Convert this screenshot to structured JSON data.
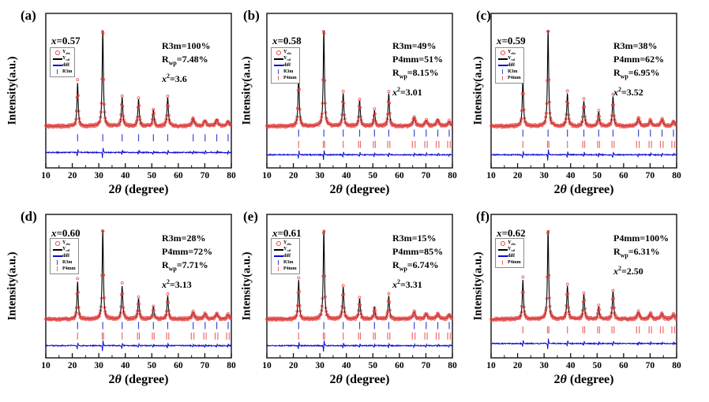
{
  "figure_title": "XRD Rietveld refinement patterns",
  "colors": {
    "observed": "#e8403e",
    "calculated": "#000000",
    "difference": "#0a0ad0",
    "R3m": "#3c46d8",
    "P4mm": "#ee6b6b",
    "frame": "#111111",
    "text": "#000000",
    "background": "#ffffff"
  },
  "legend_defs": {
    "observed": {
      "marker": "circle",
      "label": "Y_obs_"
    },
    "calculated": {
      "marker": "line",
      "label": "Y_cal_"
    },
    "difference": {
      "marker": "line",
      "label": "diff"
    },
    "R3m": {
      "marker": "tick",
      "label": "R3m"
    },
    "P4mm": {
      "marker": "tick",
      "label": "P4mm"
    }
  },
  "chart_data": {
    "type": "line",
    "xlabel": "2*θ* (degree)",
    "ylabel": "Intensity(a.u.)",
    "x_range": [
      10,
      80
    ],
    "x_ticks": [
      10,
      20,
      30,
      40,
      50,
      60,
      70,
      80
    ],
    "x_minor_tick_step": 5,
    "grid": false,
    "legend_position": "upper-left",
    "peak_positions_deg": [
      22.0,
      31.5,
      38.8,
      45.0,
      50.6,
      56.0,
      65.6,
      70.1,
      74.5,
      78.8
    ],
    "bragg_positions": {
      "R3m": [
        22.0,
        31.5,
        38.8,
        45.0,
        50.6,
        56.0,
        65.6,
        70.1,
        74.5,
        78.8
      ],
      "P4mm": [
        22.0,
        31.3,
        31.8,
        38.8,
        44.6,
        45.3,
        50.2,
        50.9,
        55.6,
        56.4,
        64.9,
        65.9,
        69.6,
        70.5,
        73.9,
        74.9,
        78.2,
        79.2
      ]
    },
    "panels": [
      {
        "id": "a",
        "label": "(a)",
        "composition": "*x*=0.57",
        "annotation": [
          "R3m=100%",
          "R_wp_=7.48%",
          "*x*^2^=3.6"
        ],
        "legend": [
          "observed",
          "calculated",
          "difference",
          "R3m"
        ],
        "phases": [
          "R3m"
        ],
        "peak_heights": [
          0.45,
          1.0,
          0.3,
          0.28,
          0.17,
          0.3,
          0.08,
          0.06,
          0.07,
          0.05
        ]
      },
      {
        "id": "b",
        "label": "(b)",
        "composition": "*x*=0.58",
        "annotation": [
          "R3m=49%",
          "P4mm=51%",
          "R_wp_=8.15%",
          "*x*^2^=3.01"
        ],
        "legend": [
          "observed",
          "calculated",
          "difference",
          "R3m",
          "P4mm"
        ],
        "phases": [
          "R3m",
          "P4mm"
        ],
        "peak_heights": [
          0.55,
          1.0,
          0.34,
          0.27,
          0.16,
          0.34,
          0.09,
          0.06,
          0.07,
          0.05
        ]
      },
      {
        "id": "c",
        "label": "(c)",
        "composition": "*x*=0.59",
        "annotation": [
          "R3m=38%",
          "P4mm=62%",
          "R_wp_=6.95%",
          "*x*^2^=3.52"
        ],
        "legend": [
          "observed",
          "calculated",
          "difference",
          "R3m",
          "P4mm"
        ],
        "phases": [
          "R3m",
          "P4mm"
        ],
        "peak_heights": [
          0.5,
          1.0,
          0.34,
          0.26,
          0.15,
          0.31,
          0.08,
          0.06,
          0.07,
          0.05
        ]
      },
      {
        "id": "d",
        "label": "(d)",
        "composition": "*x*=0.60",
        "annotation": [
          "R3m=28%",
          "P4mm=72%",
          "R_wp_=7.71%",
          "*x*^2^=3.13"
        ],
        "legend": [
          "observed",
          "calculated",
          "difference",
          "R3m",
          "P4mm"
        ],
        "phases": [
          "R3m",
          "P4mm"
        ],
        "peak_heights": [
          0.42,
          1.0,
          0.37,
          0.23,
          0.14,
          0.26,
          0.08,
          0.06,
          0.06,
          0.05
        ]
      },
      {
        "id": "e",
        "label": "(e)",
        "composition": "*x*=0.61",
        "annotation": [
          "R3m=15%",
          "P4mm=85%",
          "R_wp_=6.74%",
          "*x*^2^=3.31"
        ],
        "legend": [
          "observed",
          "calculated",
          "difference",
          "R3m",
          "P4mm"
        ],
        "phases": [
          "R3m",
          "P4mm"
        ],
        "peak_heights": [
          0.44,
          1.0,
          0.36,
          0.23,
          0.13,
          0.26,
          0.08,
          0.06,
          0.06,
          0.05
        ]
      },
      {
        "id": "f",
        "label": "(f)",
        "composition": "*x*=0.62",
        "annotation": [
          "P4mm=100%",
          "R_wp_=6.31%",
          "*x*^2^=2.50"
        ],
        "legend": [
          "observed",
          "calculated",
          "difference",
          "P4mm"
        ],
        "phases": [
          "P4mm"
        ],
        "peak_heights": [
          0.44,
          1.0,
          0.37,
          0.28,
          0.14,
          0.31,
          0.08,
          0.06,
          0.06,
          0.05
        ]
      }
    ]
  }
}
